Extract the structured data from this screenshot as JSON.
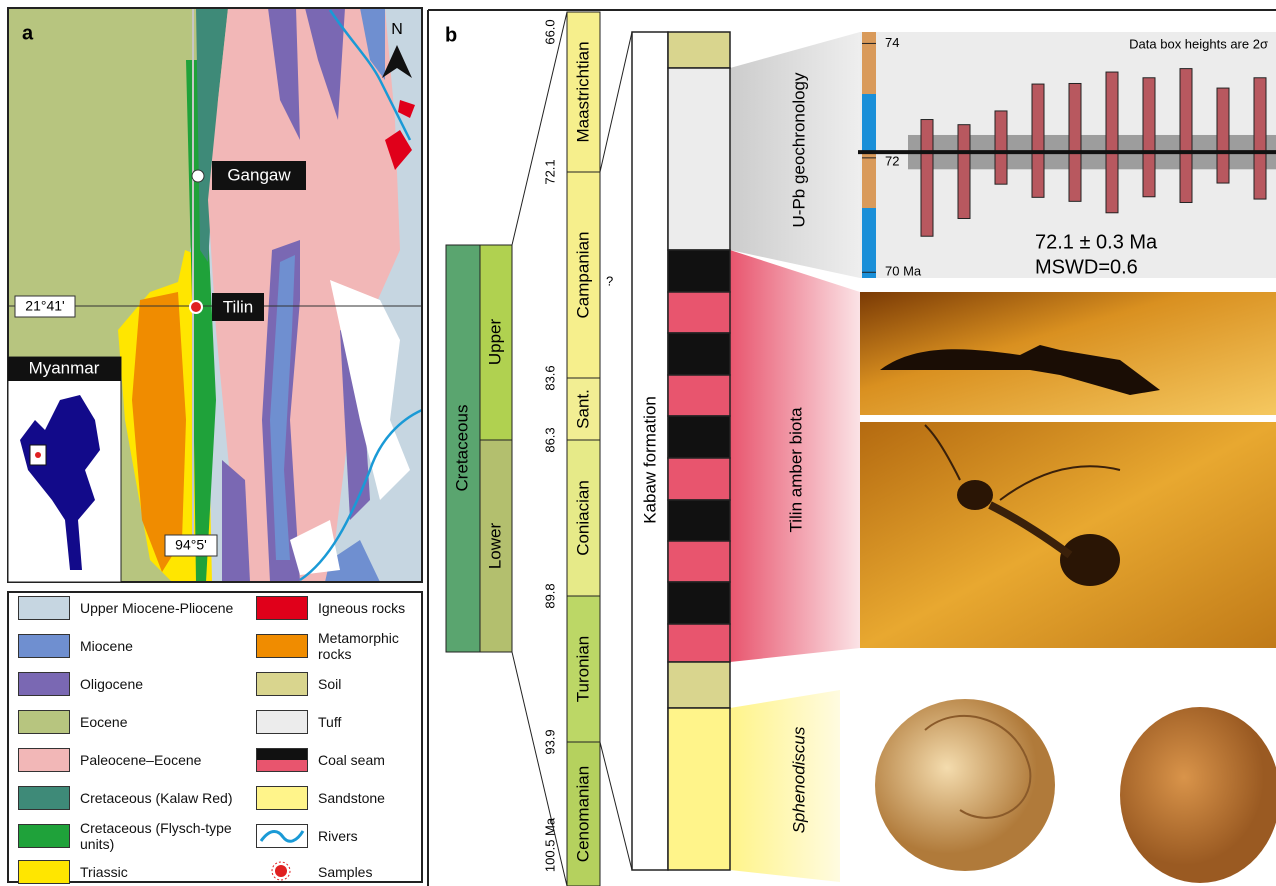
{
  "panel_a": {
    "label": "a",
    "north": "N",
    "places": [
      "Gangaw",
      "Tilin"
    ],
    "latitude": "21°41'",
    "longitude": "94°5'",
    "inset": "Myanmar",
    "legend": [
      {
        "label": "Upper Miocene-Pliocene",
        "color": "#c6d6e1"
      },
      {
        "label": "Miocene",
        "color": "#6f8fd0"
      },
      {
        "label": "Oligocene",
        "color": "#7a68b3"
      },
      {
        "label": "Eocene",
        "color": "#b7c57f"
      },
      {
        "label": "Paleocene–Eocene",
        "color": "#f2b7b7"
      },
      {
        "label": "Cretaceous (Kalaw Red)",
        "color": "#3e8a78"
      },
      {
        "label": "Cretaceous (Flysch-type units)",
        "color": "#1fa23a"
      },
      {
        "label": "Triassic",
        "color": "#ffe600"
      },
      {
        "label": "Igneous rocks",
        "color": "#e0001a"
      },
      {
        "label": "Metamorphic rocks",
        "color": "#f08c00"
      },
      {
        "label": "Soil",
        "color": "#d9d58e"
      },
      {
        "label": "Tuff",
        "color": "#ececec"
      },
      {
        "label": "Coal seam",
        "color": "#e8556e"
      },
      {
        "label": "Sandstone",
        "color": "#fff48a"
      },
      {
        "label": "Rivers",
        "color": "#1a9ad6"
      },
      {
        "label": "Samples",
        "color": "#e02020"
      }
    ]
  },
  "panel_b": {
    "label": "b",
    "period": "Cretaceous",
    "epochs": [
      "Upper",
      "Lower"
    ],
    "stages": [
      {
        "name": "Maastrichtian",
        "color": "#f6ef8c"
      },
      {
        "name": "Campanian",
        "color": "#f6ef8c"
      },
      {
        "name": "Sant.",
        "color": "#f2ee93"
      },
      {
        "name": "Coniacian",
        "color": "#e6ea88"
      },
      {
        "name": "Turonian",
        "color": "#bcd766"
      },
      {
        "name": "Cenomanian",
        "color": "#b5d15e"
      }
    ],
    "boundary_ages": [
      "66.0",
      "72.1",
      "83.6",
      "86.3",
      "89.8",
      "93.9",
      "100.5 Ma"
    ],
    "uncertain": "?",
    "formation": "Kabaw formation",
    "biota": "Tilin amber biota",
    "fossil": "Sphenodiscus"
  },
  "chart_data": {
    "type": "errorbar",
    "title": "U-Pb geochronology",
    "note": "Data box heights are 2σ",
    "values": [
      71.65,
      71.76,
      72.18,
      72.3,
      72.27,
      72.27,
      72.36,
      72.39,
      72.39,
      72.34
    ],
    "errors": [
      1.02,
      0.82,
      0.64,
      0.99,
      1.03,
      1.23,
      1.04,
      1.17,
      0.83,
      1.06
    ],
    "color": "#b8585f",
    "mean": 72.1,
    "mean_error": 0.3,
    "result_label": "72.1 ± 0.3 Ma",
    "mswd_label": "MSWD=0.6",
    "ylim": [
      69.9,
      74.2
    ],
    "yticks": [
      74,
      72,
      {
        "value": 70,
        "label": "70 Ma"
      }
    ]
  }
}
